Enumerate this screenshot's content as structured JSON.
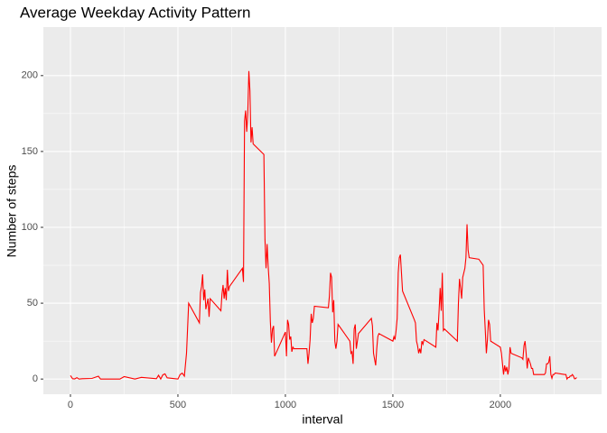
{
  "chart_data": {
    "type": "line",
    "title": "Average Weekday Activity Pattern",
    "x_label": "interval",
    "y_label": "Number of steps",
    "x": [
      0,
      10,
      20,
      30,
      40,
      55,
      100,
      130,
      140,
      200,
      230,
      250,
      300,
      330,
      400,
      410,
      420,
      430,
      440,
      450,
      500,
      510,
      520,
      530,
      540,
      550,
      600,
      605,
      610,
      615,
      620,
      625,
      630,
      640,
      645,
      650,
      700,
      705,
      710,
      715,
      720,
      725,
      730,
      735,
      740,
      800,
      805,
      810,
      815,
      820,
      825,
      830,
      835,
      840,
      845,
      850,
      900,
      905,
      910,
      915,
      920,
      925,
      930,
      935,
      940,
      945,
      950,
      1000,
      1005,
      1010,
      1015,
      1020,
      1025,
      1030,
      1035,
      1040,
      1100,
      1105,
      1110,
      1115,
      1120,
      1125,
      1130,
      1135,
      1200,
      1205,
      1210,
      1215,
      1220,
      1225,
      1230,
      1235,
      1240,
      1245,
      1300,
      1305,
      1310,
      1315,
      1320,
      1325,
      1330,
      1335,
      1340,
      1400,
      1405,
      1410,
      1415,
      1420,
      1425,
      1430,
      1435,
      1500,
      1505,
      1510,
      1515,
      1520,
      1525,
      1530,
      1535,
      1540,
      1545,
      1600,
      1605,
      1610,
      1615,
      1620,
      1625,
      1630,
      1635,
      1640,
      1645,
      1700,
      1705,
      1710,
      1715,
      1720,
      1725,
      1730,
      1735,
      1740,
      1800,
      1805,
      1810,
      1815,
      1820,
      1825,
      1830,
      1835,
      1840,
      1845,
      1850,
      1855,
      1900,
      1920,
      1925,
      1930,
      1935,
      1940,
      1945,
      1950,
      1955,
      2000,
      2005,
      2010,
      2015,
      2020,
      2025,
      2030,
      2035,
      2040,
      2045,
      2050,
      2100,
      2105,
      2110,
      2115,
      2120,
      2125,
      2130,
      2135,
      2140,
      2145,
      2150,
      2155,
      2200,
      2205,
      2210,
      2215,
      2220,
      2225,
      2230,
      2235,
      2240,
      2245,
      2250,
      2255,
      2300,
      2305,
      2310,
      2315,
      2320,
      2325,
      2330,
      2335,
      2340,
      2345,
      2350,
      2355
    ],
    "series": [
      {
        "name": "steps",
        "color": "#ff0000",
        "values": [
          2.3,
          0.2,
          0.1,
          0.9,
          0,
          0.2,
          0.4,
          1.9,
          0,
          0,
          0,
          1.6,
          0,
          1.1,
          0.2,
          2.5,
          0,
          2.8,
          3.4,
          0.8,
          0,
          2.9,
          3.9,
          1.9,
          17,
          50,
          37,
          57,
          61,
          69,
          52,
          59,
          46,
          53,
          41,
          53,
          45,
          56,
          62,
          53,
          60,
          52,
          72,
          58,
          61,
          73,
          64,
          170,
          177,
          163,
          175,
          203,
          190,
          156,
          166,
          155,
          148,
          92,
          73,
          89,
          74,
          63,
          38,
          24,
          33,
          35,
          15,
          31,
          15,
          39,
          36,
          26,
          28,
          18,
          21,
          20,
          20,
          10,
          17,
          26,
          43,
          37,
          40,
          48,
          47,
          55,
          70,
          67,
          44,
          52,
          25,
          20,
          25,
          36,
          25,
          17,
          18,
          10,
          33,
          36,
          20,
          25,
          30,
          40,
          35,
          17,
          13,
          9,
          20,
          28,
          30,
          25,
          28,
          26,
          32,
          40,
          70,
          80,
          82,
          70,
          58,
          39,
          37,
          25,
          22,
          17,
          20,
          17,
          25,
          23,
          26,
          21,
          37,
          32,
          45,
          60,
          45,
          70,
          32,
          33,
          25,
          50,
          66,
          60,
          53,
          67,
          70,
          73,
          80,
          102,
          85,
          80,
          79,
          75,
          46,
          32,
          17,
          26,
          39,
          36,
          25,
          21,
          17,
          10,
          3,
          9,
          5,
          8,
          3,
          7,
          21,
          17,
          14,
          13,
          22,
          25,
          17,
          7,
          14,
          12,
          10,
          7,
          7,
          3,
          3,
          3,
          4,
          10,
          10,
          11,
          15,
          3,
          0.5,
          3,
          3,
          4,
          3,
          3,
          0,
          1,
          1,
          2,
          2,
          3,
          2,
          0.2,
          0.3,
          1
        ]
      }
    ],
    "xlim": [
      -126,
      2471
    ],
    "ylim": [
      -10,
      232
    ],
    "xticks": [
      0,
      500,
      1000,
      1500,
      2000
    ],
    "yticks": [
      0,
      50,
      100,
      150,
      200
    ],
    "x_minor_grid": [
      250,
      750,
      1250,
      1750,
      2250
    ],
    "y_minor_grid": [
      25,
      75,
      125,
      175
    ],
    "grid": true,
    "panel_color": "#ebebeb"
  }
}
